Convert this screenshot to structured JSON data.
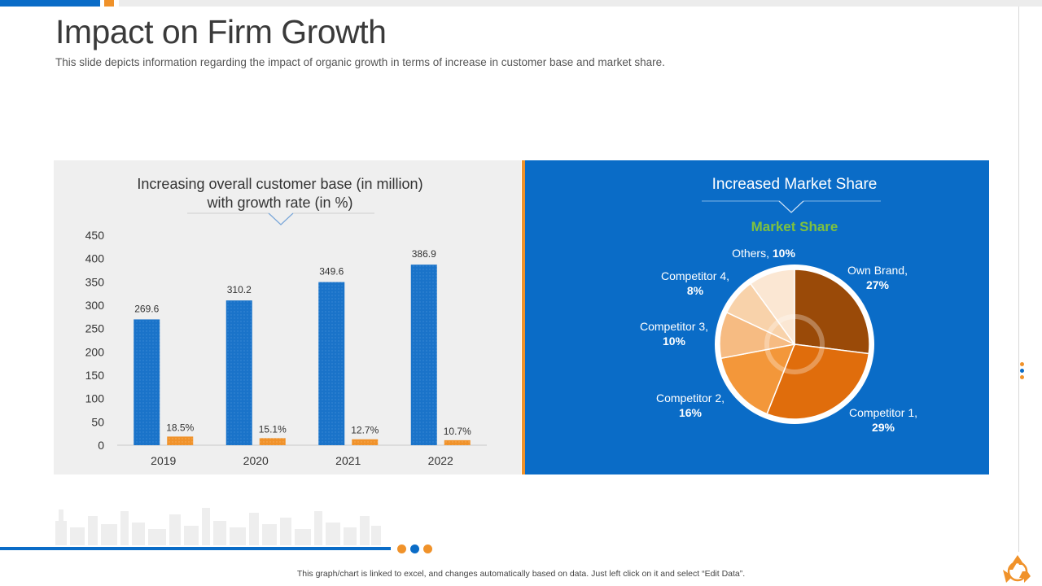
{
  "page": {
    "title": "Impact on Firm Growth",
    "subtitle": "This slide depicts information regarding the impact of organic growth in terms of increase in customer base and market share.",
    "footer_note": "This graph/chart is linked to excel, and changes automatically  based on data. Just left click on it and select “Edit Data”."
  },
  "colors": {
    "blue": "#0a6cc7",
    "orange": "#f0922a",
    "bar_blue": "#1a73c9",
    "bar_orange": "#f0922a",
    "green": "#7ec13f"
  },
  "chart_data": [
    {
      "type": "bar",
      "title_line1": "Increasing overall customer base (in million)",
      "title_line2": "with growth rate (in %)",
      "categories": [
        "2019",
        "2020",
        "2021",
        "2022"
      ],
      "ylim": [
        0,
        450
      ],
      "yticks": [
        0,
        50,
        100,
        150,
        200,
        250,
        300,
        350,
        400,
        450
      ],
      "series": [
        {
          "name": "Customer base (in million)",
          "values": [
            269.6,
            310.2,
            349.6,
            386.9
          ],
          "labels": [
            "269.6",
            "310.2",
            "349.6",
            "386.9"
          ]
        },
        {
          "name": "Growth rate (in %)",
          "values": [
            18.5,
            15.1,
            12.7,
            10.7
          ],
          "labels": [
            "18.5%",
            "15.1%",
            "12.7%",
            "10.7%"
          ]
        }
      ]
    },
    {
      "type": "pie",
      "header": "Increased  Market Share",
      "title": "Market Share",
      "slices": [
        {
          "name": "Own Brand,",
          "value": 27,
          "label": "27%",
          "color": "#9a4a08"
        },
        {
          "name": "Competitor 1,",
          "value": 29,
          "label": "29%",
          "color": "#e06d0c"
        },
        {
          "name": "Competitor 2,",
          "value": 16,
          "label": "16%",
          "color": "#f3973a"
        },
        {
          "name": "Competitor 3,",
          "value": 10,
          "label": "10%",
          "color": "#f6bb82"
        },
        {
          "name": "Competitor 4,",
          "value": 8,
          "label": "8%",
          "color": "#f8d2aa"
        },
        {
          "name": "Others,",
          "value": 10,
          "label": "10%",
          "color": "#fbe7d3"
        }
      ]
    }
  ]
}
